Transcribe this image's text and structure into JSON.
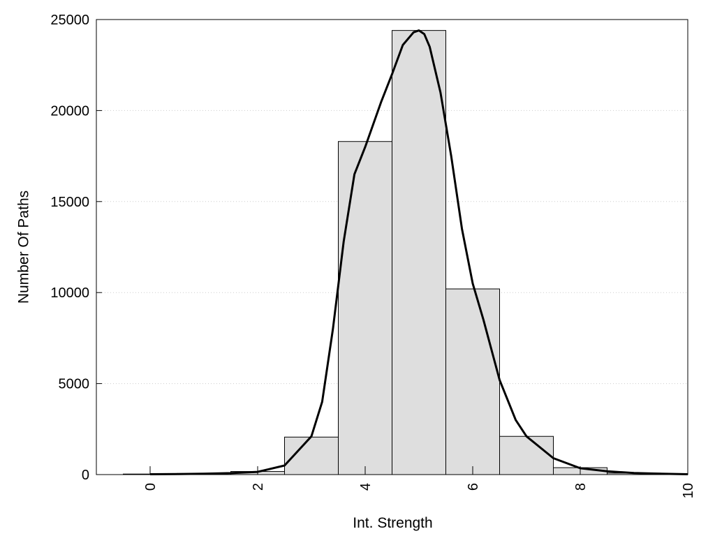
{
  "chart_data": {
    "type": "bar",
    "title": "",
    "xlabel": "Int. Strength",
    "ylabel": "Number Of Paths",
    "xlim": [
      -1,
      10
    ],
    "ylim": [
      0,
      25000
    ],
    "xticks": [
      0,
      2,
      4,
      6,
      8,
      10
    ],
    "yticks": [
      0,
      5000,
      10000,
      15000,
      20000,
      25000
    ],
    "grid": {
      "y": true,
      "x": false
    },
    "legend": "none",
    "bar_width": 1,
    "bars": [
      {
        "x": 0,
        "value": 30
      },
      {
        "x": 1,
        "value": 60
      },
      {
        "x": 2,
        "value": 170
      },
      {
        "x": 3,
        "value": 2060
      },
      {
        "x": 4,
        "value": 18300
      },
      {
        "x": 5,
        "value": 24400
      },
      {
        "x": 6,
        "value": 10200
      },
      {
        "x": 7,
        "value": 2100
      },
      {
        "x": 8,
        "value": 380
      },
      {
        "x": 9,
        "value": 80
      },
      {
        "x": 10,
        "value": 20
      }
    ],
    "curve": {
      "points": [
        [
          0,
          20
        ],
        [
          0.5,
          30
        ],
        [
          1,
          50
        ],
        [
          1.5,
          80
        ],
        [
          2,
          150
        ],
        [
          2.5,
          500
        ],
        [
          3,
          2100
        ],
        [
          3.2,
          4000
        ],
        [
          3.4,
          8000
        ],
        [
          3.6,
          12800
        ],
        [
          3.8,
          16500
        ],
        [
          4,
          18000
        ],
        [
          4.3,
          20500
        ],
        [
          4.5,
          22000
        ],
        [
          4.7,
          23600
        ],
        [
          4.9,
          24300
        ],
        [
          5,
          24400
        ],
        [
          5.1,
          24200
        ],
        [
          5.2,
          23500
        ],
        [
          5.4,
          21000
        ],
        [
          5.6,
          17500
        ],
        [
          5.8,
          13500
        ],
        [
          6,
          10500
        ],
        [
          6.2,
          8500
        ],
        [
          6.5,
          5200
        ],
        [
          6.8,
          3000
        ],
        [
          7,
          2100
        ],
        [
          7.5,
          900
        ],
        [
          8,
          350
        ],
        [
          8.5,
          180
        ],
        [
          9,
          90
        ],
        [
          9.5,
          45
        ],
        [
          10,
          20
        ]
      ]
    },
    "colors": {
      "bar_fill": "#dedede",
      "bar_stroke": "#000000",
      "curve": "#000000",
      "grid": "#cccccc"
    }
  }
}
